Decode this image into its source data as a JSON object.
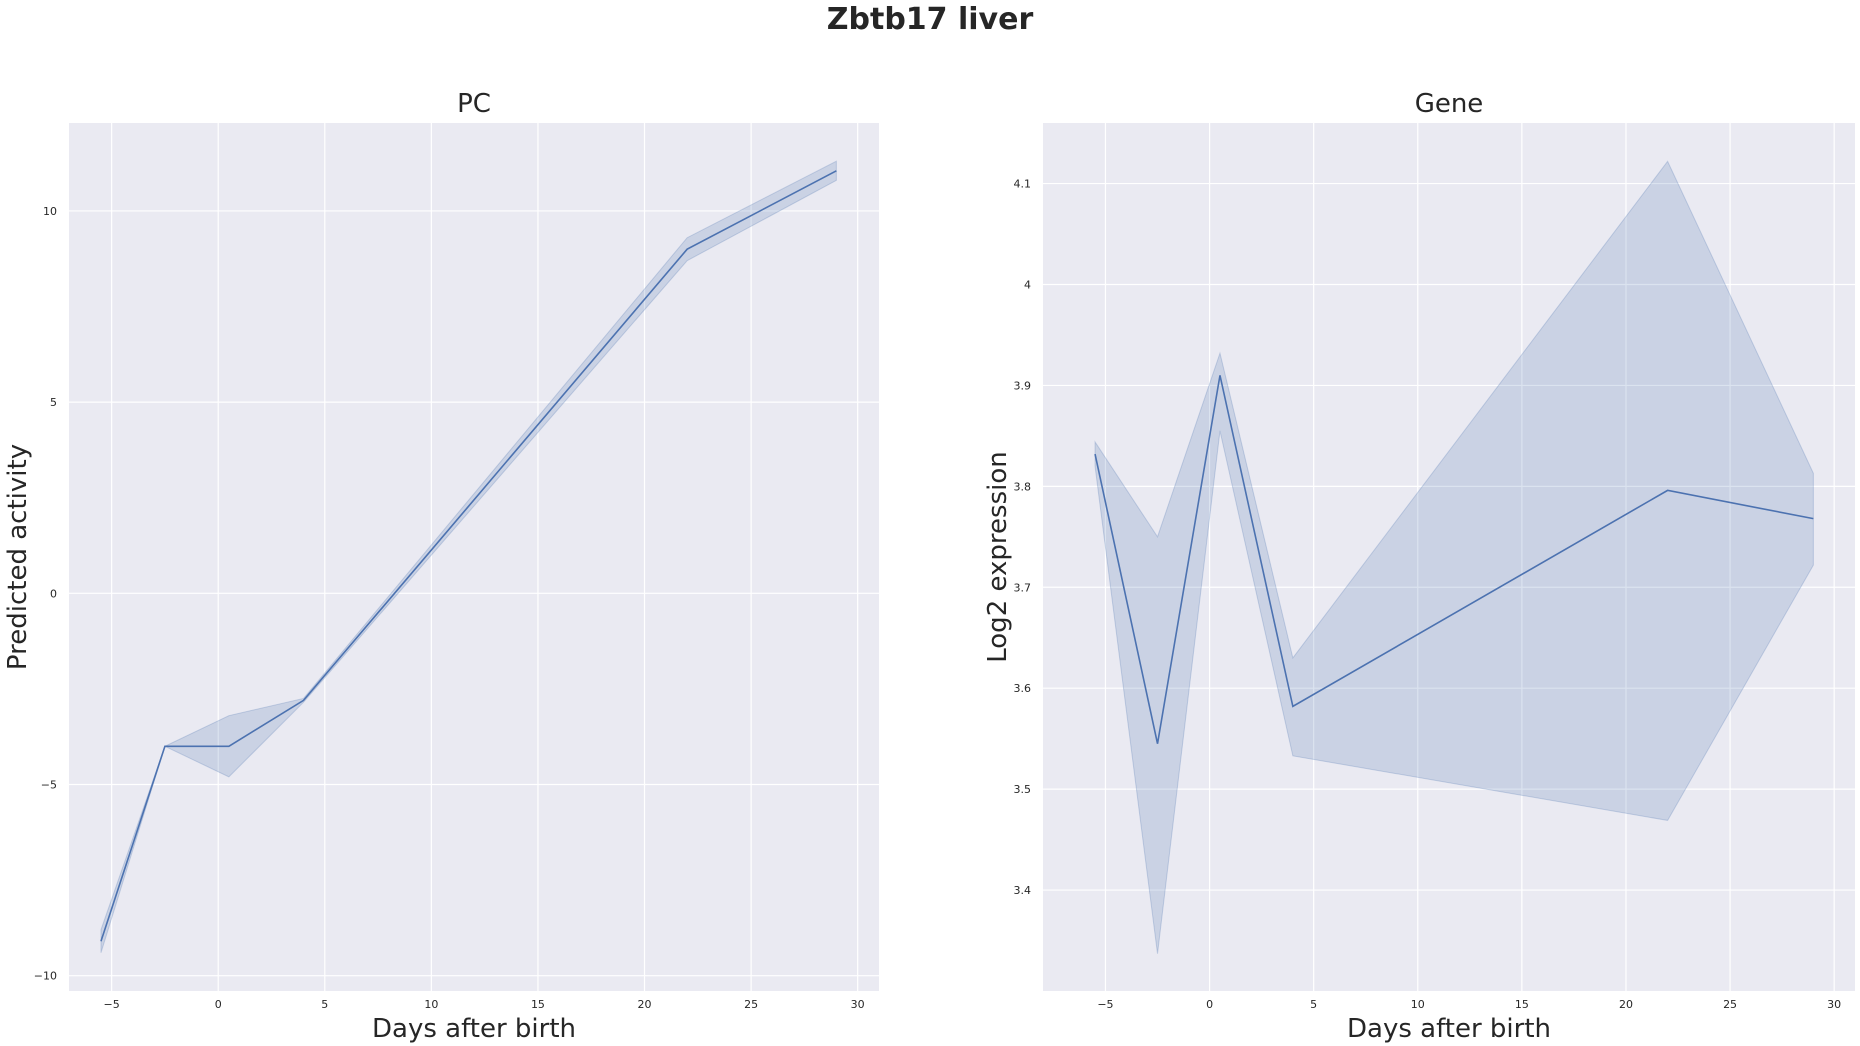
{
  "figure": {
    "title": "Zbtb17 liver"
  },
  "chart_data": [
    {
      "type": "line",
      "title": "PC",
      "xlabel": "Days after birth",
      "ylabel": "Predicted activity",
      "xlim": [
        -7,
        31
      ],
      "ylim": [
        -10.4,
        12.3
      ],
      "xticks": [
        -5,
        0,
        5,
        10,
        15,
        20,
        25,
        30
      ],
      "yticks": [
        -10,
        -5,
        0,
        5,
        10
      ],
      "grid": true,
      "background": "#eaeaf2",
      "line_color": "#4c72b0",
      "band_color": "#4c72b0",
      "series": [
        {
          "x": [
            -5.5,
            -2.5,
            0.5,
            4,
            22,
            29
          ],
          "y": [
            -9.1,
            -4.0,
            -4.0,
            -2.8,
            9.0,
            11.05
          ],
          "ci_low": [
            -9.4,
            -4.0,
            -4.8,
            -2.85,
            8.7,
            10.8
          ],
          "ci_high": [
            -8.8,
            -4.0,
            -3.2,
            -2.75,
            9.3,
            11.3
          ]
        }
      ]
    },
    {
      "type": "line",
      "title": "Gene",
      "xlabel": "Days after birth",
      "ylabel": "Log2 expression",
      "xlim": [
        -8,
        31
      ],
      "ylim": [
        3.3,
        4.16
      ],
      "xticks": [
        -5,
        0,
        5,
        10,
        15,
        20,
        25,
        30
      ],
      "yticks": [
        3.4,
        3.5,
        3.6,
        3.7,
        3.8,
        3.9,
        4.0,
        4.1
      ],
      "grid": true,
      "background": "#eaeaf2",
      "line_color": "#4c72b0",
      "band_color": "#4c72b0",
      "series": [
        {
          "x": [
            -5.5,
            -2.5,
            0.5,
            4,
            22,
            29
          ],
          "y": [
            3.832,
            3.545,
            3.91,
            3.582,
            3.796,
            3.768
          ],
          "ci_low": [
            3.82,
            3.337,
            3.855,
            3.533,
            3.469,
            3.722
          ],
          "ci_high": [
            3.844,
            3.75,
            3.932,
            3.63,
            4.122,
            3.813
          ]
        }
      ]
    }
  ]
}
